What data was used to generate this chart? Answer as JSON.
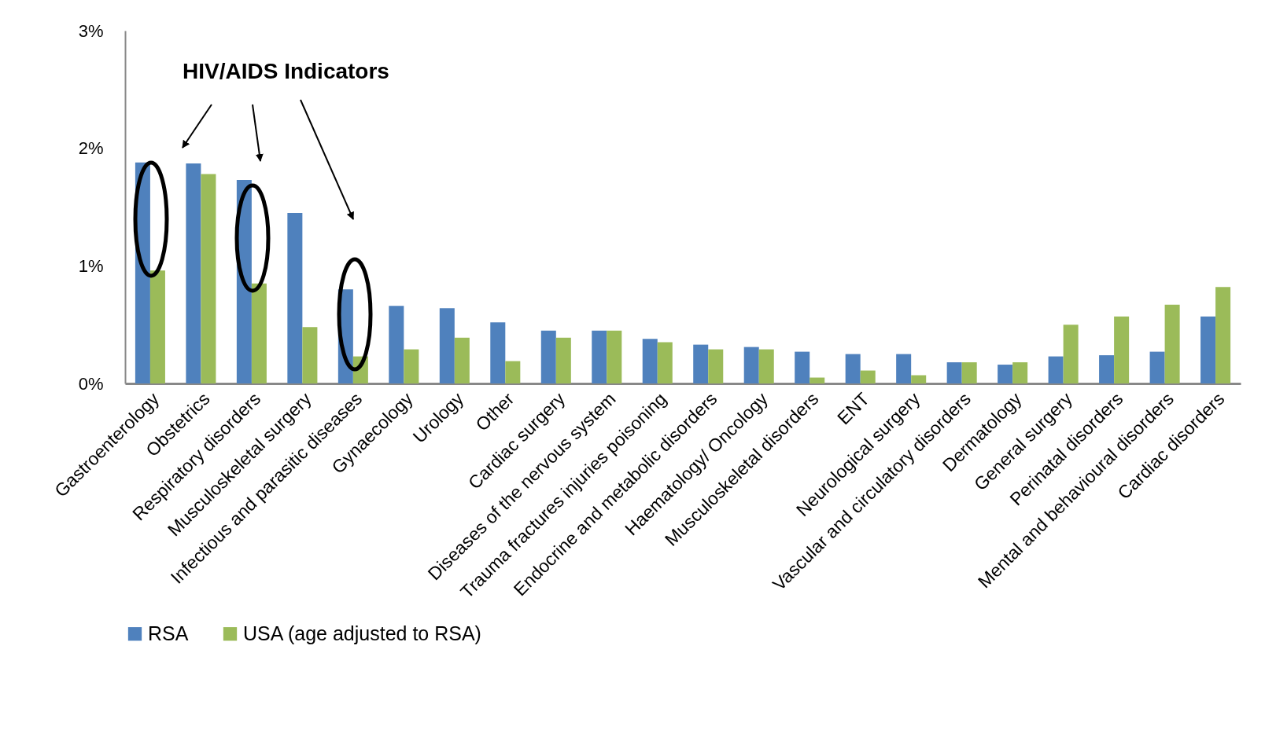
{
  "chart_data": {
    "type": "bar",
    "categories": [
      "Gastroenterology",
      "Obstetrics",
      "Respiratory disorders",
      "Musculoskeletal surgery",
      "Infectious and parasitic diseases",
      "Gynaecology",
      "Urology",
      "Other",
      "Cardiac surgery",
      "Diseases of the nervous system",
      "Trauma fractures injuries poisoning",
      "Endocrine and metabolic disorders",
      "Haematology/ Oncology",
      "Musculoskeletal disorders",
      "ENT",
      "Neurological surgery",
      "Vascular and circulatory disorders",
      "Dermatology",
      "General surgery",
      "Perinatal disorders",
      "Mental and behavioural disorders",
      "Cardiac disorders"
    ],
    "series": [
      {
        "name": "RSA",
        "color": "#4f81bd",
        "values": [
          1.88,
          1.87,
          1.73,
          1.45,
          0.8,
          0.66,
          0.64,
          0.52,
          0.45,
          0.45,
          0.38,
          0.33,
          0.31,
          0.27,
          0.25,
          0.25,
          0.18,
          0.16,
          0.23,
          0.24,
          0.27,
          0.57
        ]
      },
      {
        "name": "USA (age adjusted to RSA)",
        "color": "#9bbb59",
        "values": [
          0.96,
          1.78,
          0.85,
          0.48,
          0.23,
          0.29,
          0.39,
          0.19,
          0.39,
          0.45,
          0.35,
          0.29,
          0.29,
          0.05,
          0.11,
          0.07,
          0.18,
          0.18,
          0.5,
          0.57,
          0.67,
          0.82
        ]
      }
    ],
    "ylim": [
      0,
      3
    ],
    "yticks": [
      {
        "value": 0,
        "label": "0%"
      },
      {
        "value": 1,
        "label": "1%"
      },
      {
        "value": 2,
        "label": "2%"
      },
      {
        "value": 3,
        "label": "3%"
      }
    ],
    "legend": "bottom",
    "annotations": [
      "HIV/AIDS Indicators"
    ]
  }
}
